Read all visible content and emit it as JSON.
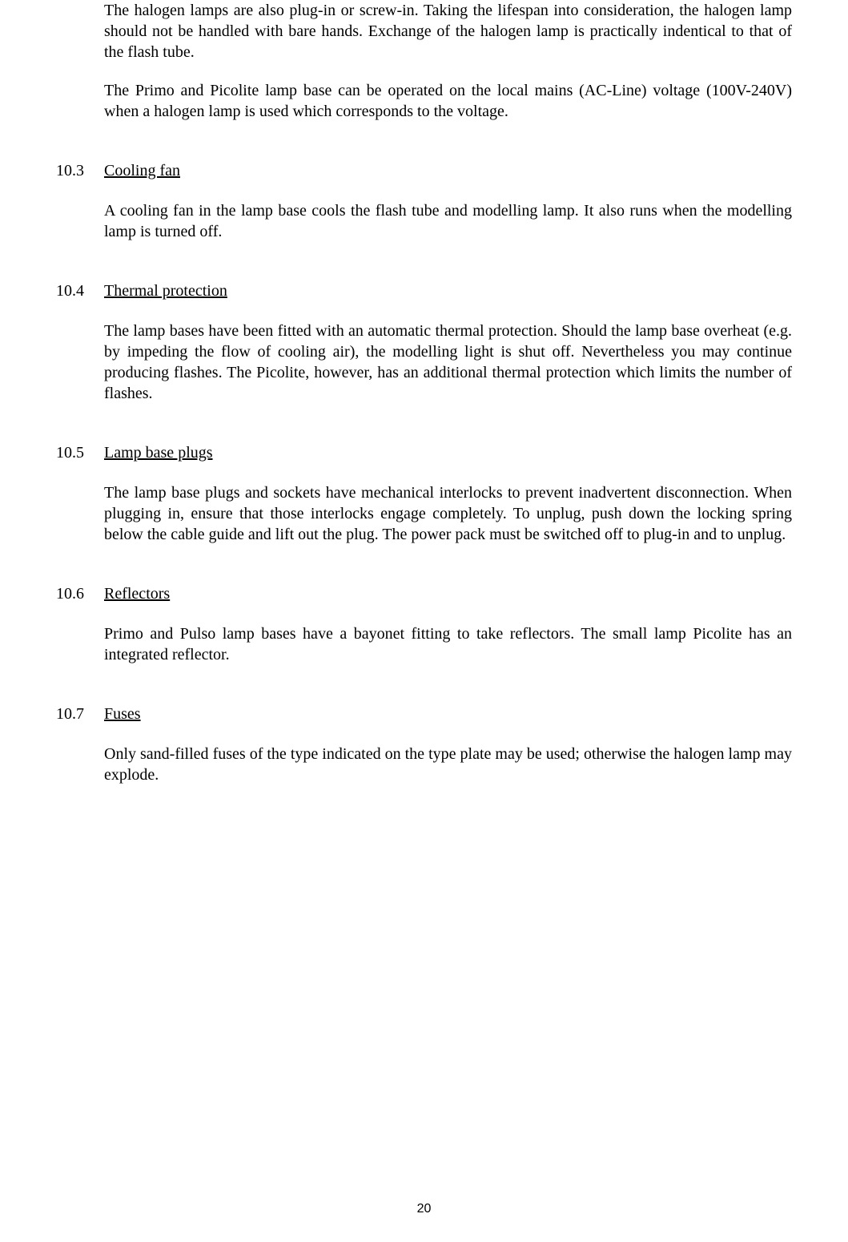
{
  "intro": {
    "para1": "The halogen lamps are also plug-in or screw-in. Taking the lifespan into consideration, the halogen lamp should not be handled with bare hands.  Exchange of the halogen lamp is practically indentical to that of the flash tube.",
    "para2": "The Primo and Picolite lamp base can be operated on the local mains (AC-Line) voltage (100V-240V) when a halogen lamp is used which corresponds to the voltage."
  },
  "sections": {
    "s103": {
      "number": "10.3",
      "title": "Cooling fan",
      "body": "A cooling fan in the lamp base cools the flash tube and modelling lamp. It also runs when the modelling lamp is turned off."
    },
    "s104": {
      "number": "10.4",
      "title": "Thermal protection",
      "body": "The lamp bases have been fitted with an automatic thermal protection. Should the lamp base overheat (e.g. by impeding the flow of cooling air), the modelling light is shut off. Nevertheless you may continue producing flashes. The Picolite, however, has an additional thermal protection which limits the number of flashes."
    },
    "s105": {
      "number": "10.5",
      "title": "Lamp base plugs",
      "body": "The lamp base plugs and sockets have mechanical interlocks to prevent inadvertent disconnection. When plugging in, ensure that those interlocks engage completely. To unplug, push down the locking spring below the cable guide and lift out the plug. The power pack must be switched off to plug-in and to unplug."
    },
    "s106": {
      "number": "10.6",
      "title": "Reflectors",
      "body": "Primo and Pulso lamp bases have a bayonet fitting to take reflectors. The small lamp Picolite has an integrated reflector."
    },
    "s107": {
      "number": "10.7",
      "title": "Fuses",
      "body": "Only sand-filled fuses of the type indicated on the type plate may be used; otherwise the halogen lamp may explode."
    }
  },
  "pageNumber": "20"
}
